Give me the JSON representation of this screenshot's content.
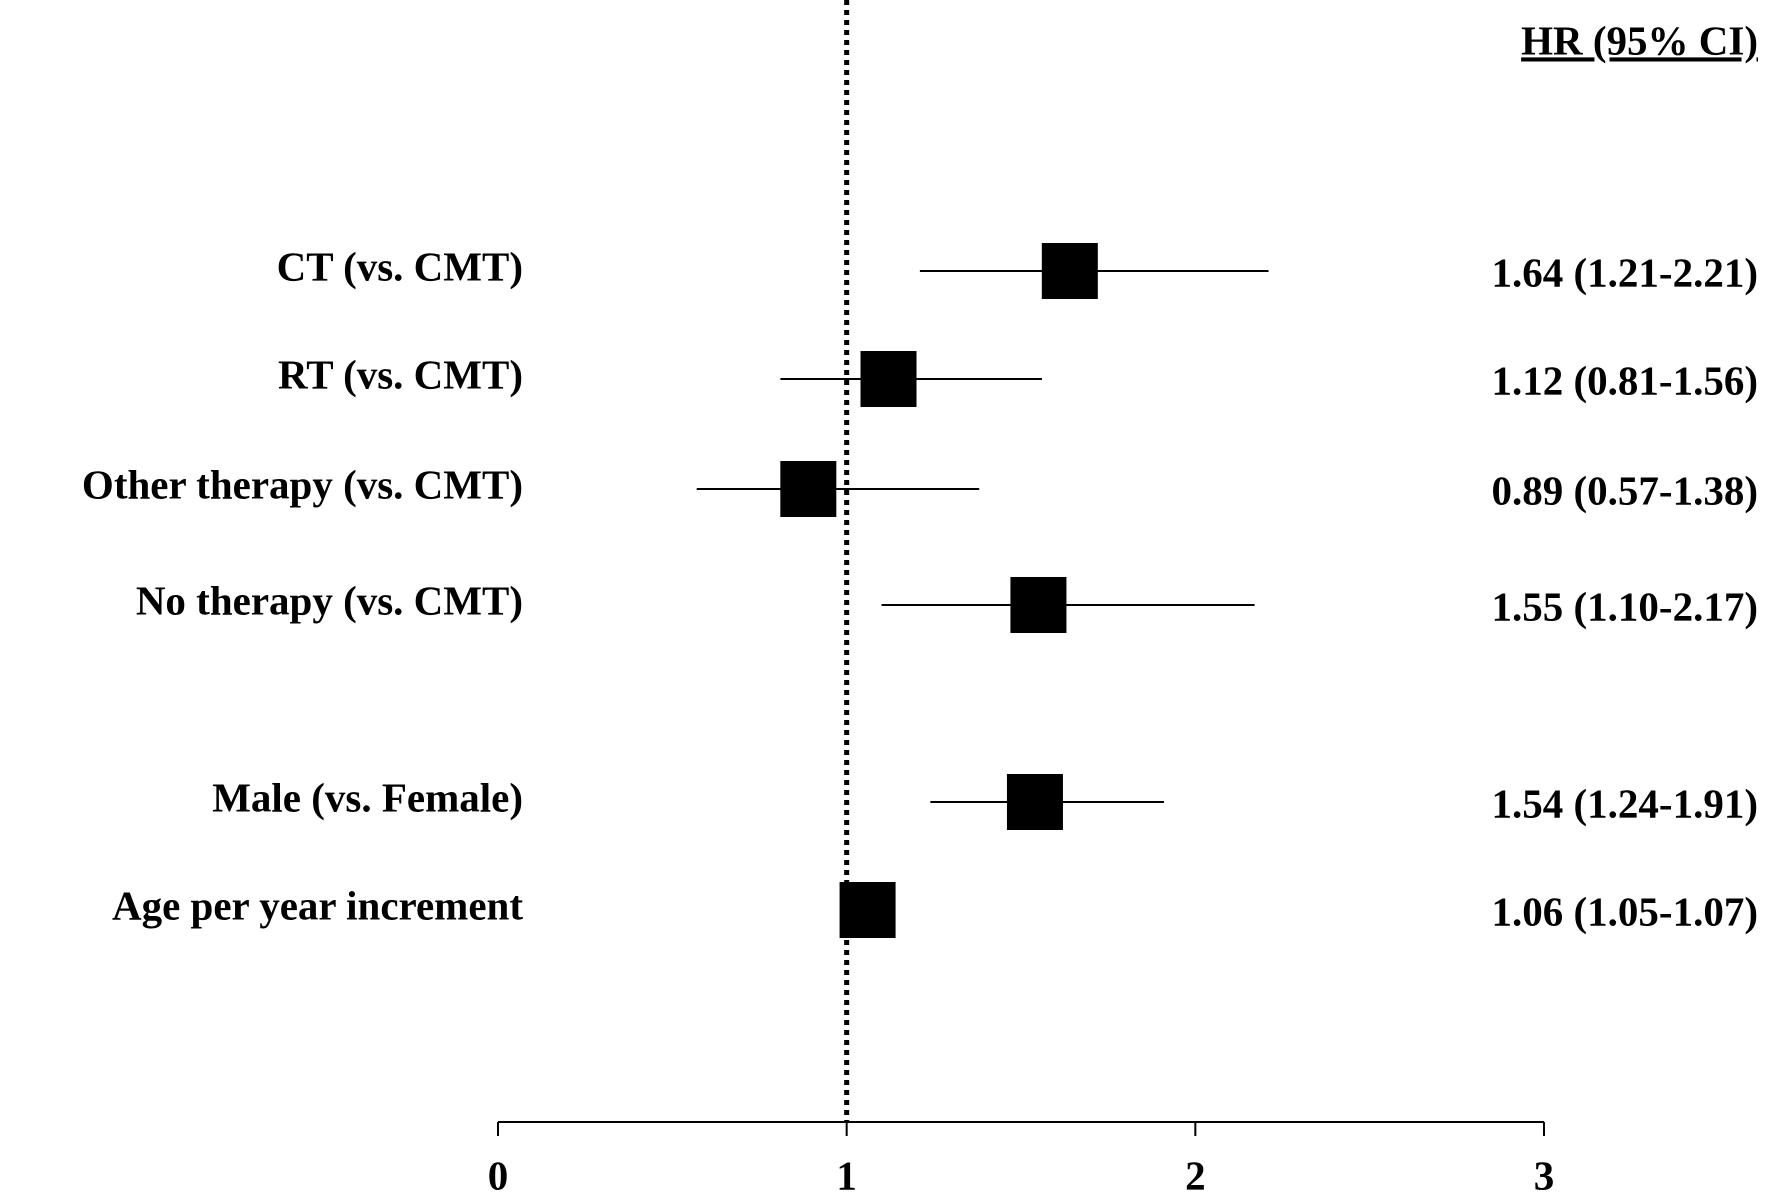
{
  "chart_data": {
    "type": "forest",
    "column_title": "HR (95% CI)",
    "categories": [
      "CT (vs. CMT)",
      "RT (vs. CMT)",
      "Other therapy (vs. CMT)",
      "No therapy (vs. CMT)",
      "Male (vs. Female)",
      "Age per year increment"
    ],
    "series": [
      {
        "color": "#000000",
        "values": [
          1.64,
          1.12,
          0.89,
          1.55,
          1.54,
          1.06
        ],
        "lower": [
          1.21,
          0.81,
          0.57,
          1.1,
          1.24,
          1.05
        ],
        "upper": [
          2.21,
          1.56,
          1.38,
          2.17,
          1.91,
          1.07
        ],
        "value_labels": [
          "1.64 (1.21-2.21)",
          "1.12 (0.81-1.56)",
          "0.89 (0.57-1.38)",
          "1.55 (1.10-2.17)",
          "1.54 (1.24-1.91)",
          "1.06 (1.05-1.07)"
        ]
      }
    ],
    "xlim": [
      0,
      3
    ],
    "xticks": [
      0,
      1,
      2,
      3
    ],
    "ref_line": 1
  }
}
